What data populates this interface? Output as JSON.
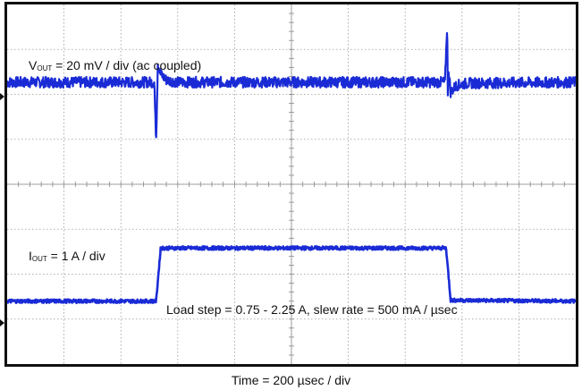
{
  "chart_data": {
    "type": "line",
    "title": "",
    "xlabel": "Time = 200 µsec / div",
    "grid": true,
    "divisions": {
      "x": 10,
      "y": 8
    },
    "annotations": {
      "vout_prefix": "V",
      "vout_sub": "OUT",
      "vout_rest": " = 20 mV / div (ac coupled)",
      "iout_prefix": "I",
      "iout_sub": "OUT",
      "iout_rest": " = 1 A / div",
      "load_step": "Load step = 0.75 - 2.25 A, slew rate = 500 mA / µsec"
    },
    "colors": {
      "trace": "#1a2bd6",
      "grid": "#999999",
      "frame": "#111111"
    },
    "series": [
      {
        "x_div": [
          0,
          2.59,
          2.6,
          2.62,
          2.65,
          2.7,
          2.8,
          3.0,
          7.7,
          7.74,
          7.75,
          7.76,
          7.8,
          7.9,
          8.1,
          10
        ],
        "y_div": [
          6.27,
          6.27,
          5.7,
          5.0,
          6.7,
          6.45,
          6.32,
          6.27,
          6.27,
          7.6,
          5.9,
          6.6,
          6.05,
          6.2,
          6.25,
          6.27
        ],
        "noise_div": 0.12
      },
      {
        "x_div": [
          0,
          2.62,
          2.7,
          7.7,
          7.72,
          7.8,
          10
        ],
        "y_div": [
          1.4,
          1.4,
          2.58,
          2.58,
          2.58,
          1.42,
          1.4
        ],
        "noise_div": 0.04
      }
    ]
  }
}
